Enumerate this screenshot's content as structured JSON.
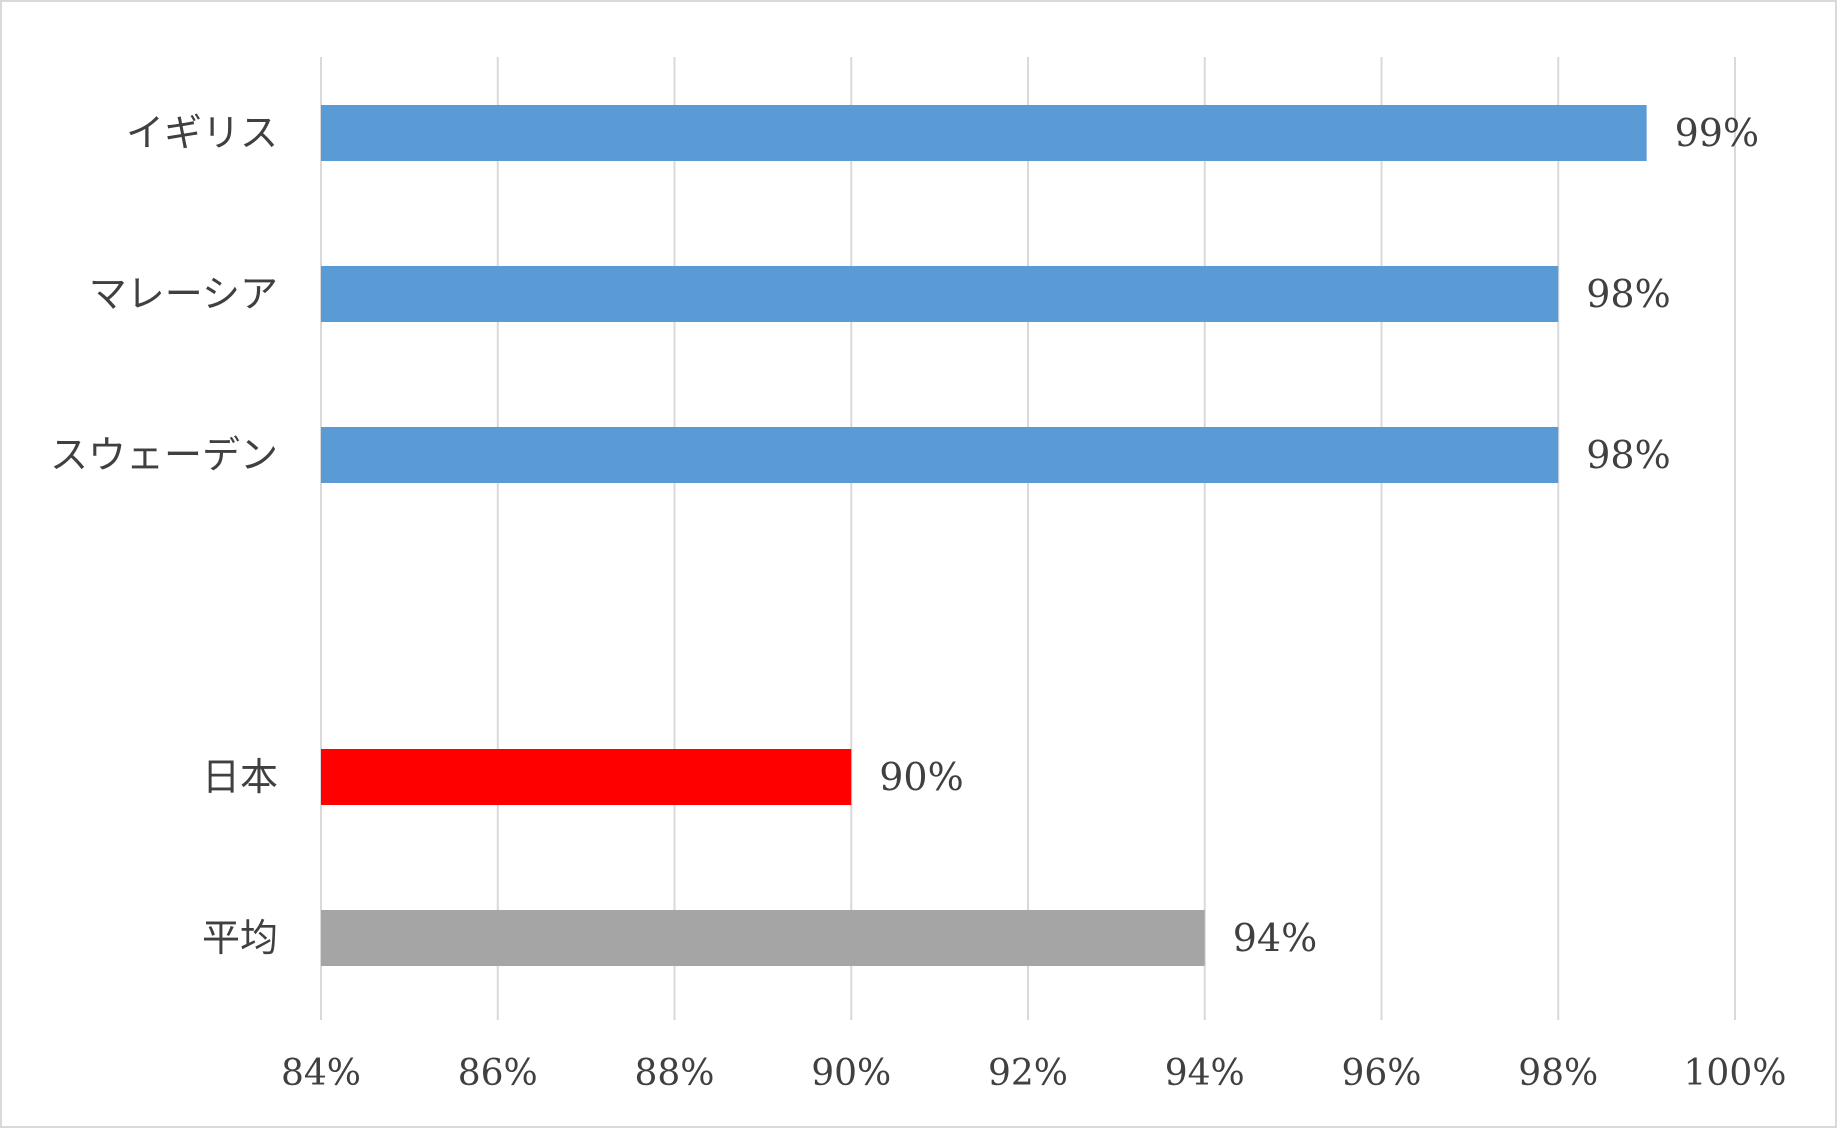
{
  "chart_data": {
    "type": "bar",
    "orientation": "horizontal",
    "categories": [
      "イギリス",
      "マレーシア",
      "スウェーデン",
      "",
      "日本",
      "平均"
    ],
    "values": [
      99,
      98,
      98,
      null,
      90,
      94
    ],
    "value_labels": [
      "99%",
      "98%",
      "98%",
      "",
      "90%",
      "94%"
    ],
    "bar_colors": [
      "#5b9bd5",
      "#5b9bd5",
      "#5b9bd5",
      "",
      "#ff0000",
      "#a5a5a5"
    ],
    "xlim": [
      84,
      100
    ],
    "x_ticks": [
      84,
      86,
      88,
      90,
      92,
      94,
      96,
      98,
      100
    ],
    "x_tick_labels": [
      "84%",
      "86%",
      "88%",
      "90%",
      "92%",
      "94%",
      "96%",
      "98%",
      "100%"
    ],
    "grid": true,
    "gridline_color": "#d9d9d9",
    "legend": "none",
    "title": "",
    "xlabel": "",
    "ylabel": ""
  }
}
